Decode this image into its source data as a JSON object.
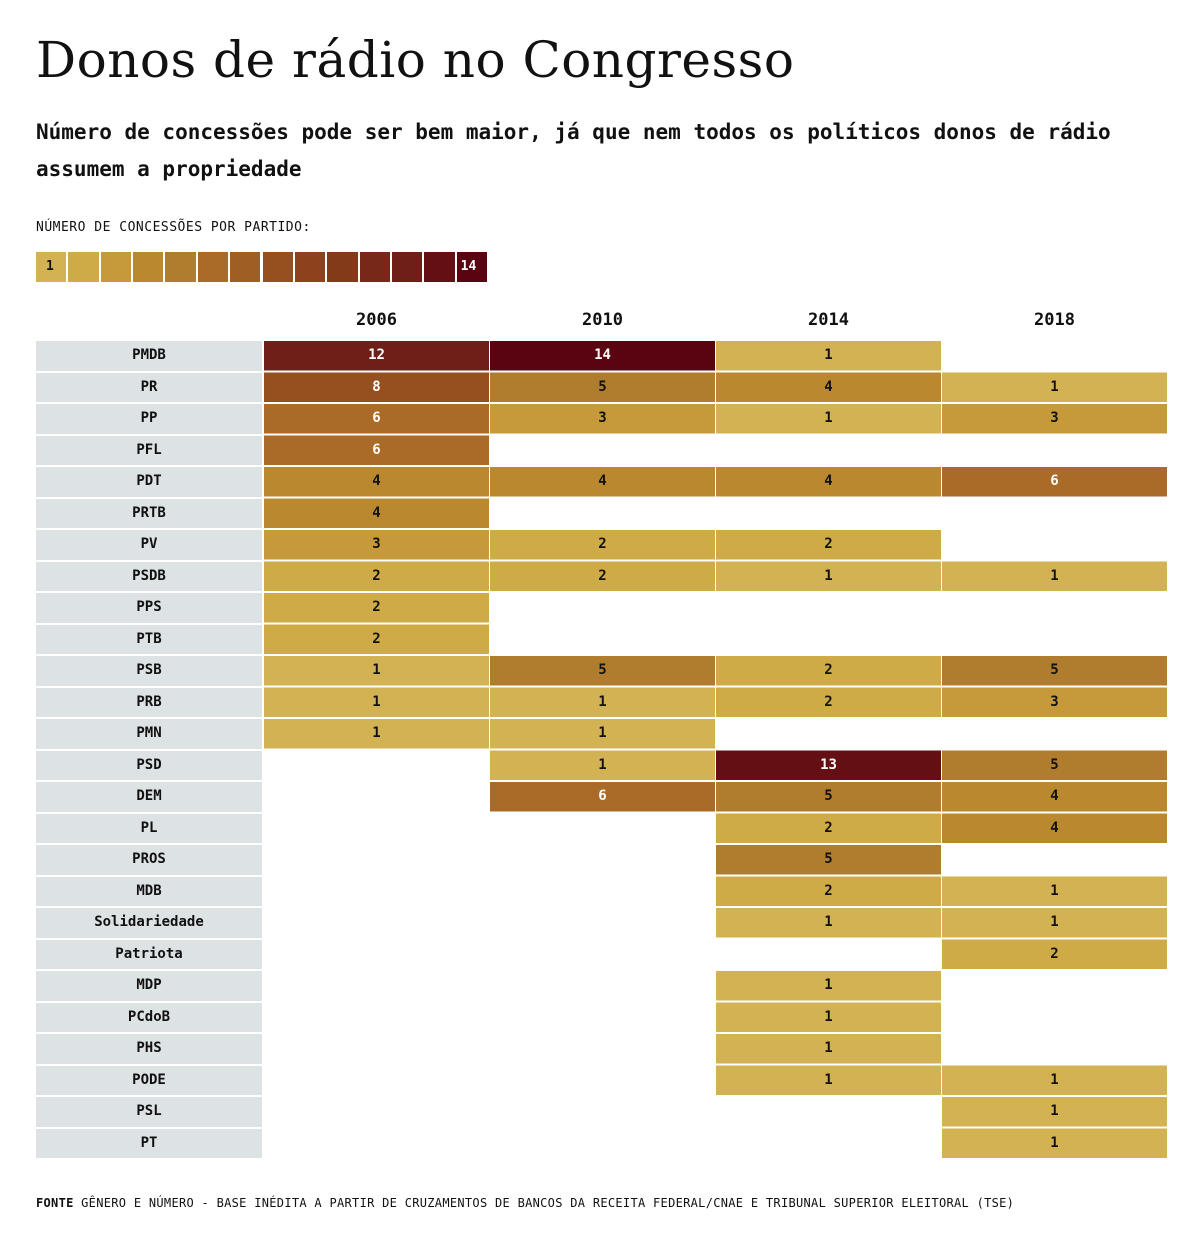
{
  "header": {
    "title": "Donos de rádio no Congresso",
    "subtitle": "Número de concessões pode ser bem maior, já que nem todos os políticos donos de rádio assumem a propriedade"
  },
  "legend": {
    "label": "NÚMERO DE CONCESSÕES POR PARTIDO:",
    "min": 1,
    "max": 14,
    "colors": [
      "#d3b254",
      "#cfab48",
      "#c6993a",
      "#b9882f",
      "#b07c2e",
      "#a96b27",
      "#a05f22",
      "#965020",
      "#8c431d",
      "#823a19",
      "#772818",
      "#6e1f17",
      "#630f14",
      "#590410"
    ]
  },
  "chart_data": {
    "type": "heatmap",
    "title": "Donos de rádio no Congresso",
    "columns": [
      "2006",
      "2010",
      "2014",
      "2018"
    ],
    "rows": [
      "PMDB",
      "PR",
      "PP",
      "PFL",
      "PDT",
      "PRTB",
      "PV",
      "PSDB",
      "PPS",
      "PTB",
      "PSB",
      "PRB",
      "PMN",
      "PSD",
      "DEM",
      "PL",
      "PROS",
      "MDB",
      "Solidariedade",
      "Patriota",
      "MDP",
      "PCdoB",
      "PHS",
      "PODE",
      "PSL",
      "PT"
    ],
    "values": [
      [
        12,
        14,
        1,
        null
      ],
      [
        8,
        5,
        4,
        1
      ],
      [
        6,
        3,
        1,
        3
      ],
      [
        6,
        null,
        null,
        null
      ],
      [
        4,
        4,
        4,
        6
      ],
      [
        4,
        null,
        null,
        null
      ],
      [
        3,
        2,
        2,
        null
      ],
      [
        2,
        2,
        1,
        1
      ],
      [
        2,
        null,
        null,
        null
      ],
      [
        2,
        null,
        null,
        null
      ],
      [
        1,
        5,
        2,
        5
      ],
      [
        1,
        1,
        2,
        3
      ],
      [
        1,
        1,
        null,
        null
      ],
      [
        null,
        1,
        13,
        5
      ],
      [
        null,
        6,
        5,
        4
      ],
      [
        null,
        null,
        2,
        4
      ],
      [
        null,
        null,
        5,
        null
      ],
      [
        null,
        null,
        2,
        1
      ],
      [
        null,
        null,
        1,
        1
      ],
      [
        null,
        null,
        null,
        2
      ],
      [
        null,
        null,
        1,
        null
      ],
      [
        null,
        null,
        1,
        null
      ],
      [
        null,
        null,
        1,
        null
      ],
      [
        null,
        null,
        1,
        1
      ],
      [
        null,
        null,
        null,
        1
      ],
      [
        null,
        null,
        null,
        1
      ]
    ]
  },
  "footer": {
    "source_label": "FONTE",
    "source_text": "GÊNERO E NÚMERO - BASE INÉDITA A PARTIR DE CRUZAMENTOS DE BANCOS DA RECEITA FEDERAL/CNAE E TRIBUNAL SUPERIOR ELEITORAL (TSE)"
  }
}
